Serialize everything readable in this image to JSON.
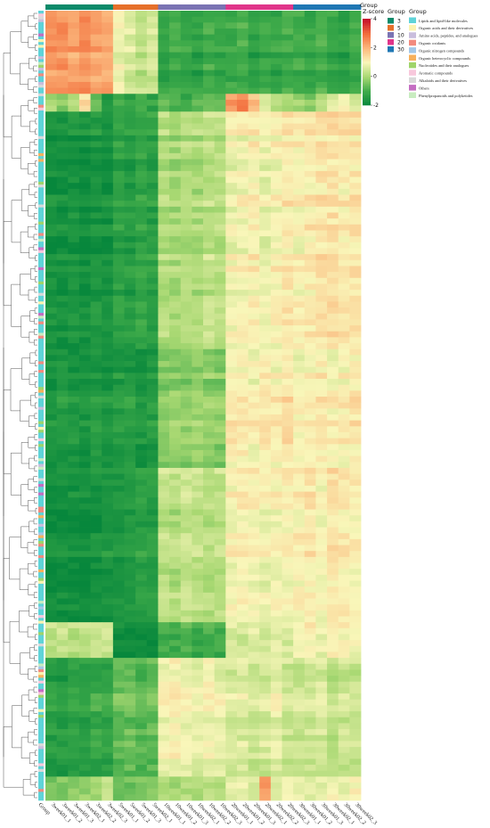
{
  "chart_data": {
    "type": "heatmap",
    "title": "",
    "top_annotation_label": "Group",
    "samples": [
      "3week01_1",
      "3week01_2",
      "3week01_3",
      "3week02_1",
      "3week02_2",
      "3week02_3",
      "5week01_1",
      "5week01_2",
      "5week01_3",
      "5week02_1",
      "10week01_1",
      "10week01_2",
      "10week01_3",
      "10week02_1",
      "10week02_2",
      "10week02_3",
      "20week01_1",
      "20week01_2",
      "20week01_3",
      "20week02_1",
      "20week02_2",
      "20week02_3",
      "30week01_1",
      "30week01_2",
      "30week01_3",
      "30week02_1",
      "30week02_2",
      "30week02_3"
    ],
    "sample_groups": [
      "3",
      "3",
      "3",
      "3",
      "3",
      "3",
      "5",
      "5",
      "5",
      "5",
      "10",
      "10",
      "10",
      "10",
      "10",
      "10",
      "20",
      "20",
      "20",
      "20",
      "20",
      "20",
      "30",
      "30",
      "30",
      "30",
      "30",
      "30"
    ],
    "bottom_first_label": "Group",
    "colorbar": {
      "title": "Z-score",
      "ticks": [
        4,
        2,
        0,
        -2
      ],
      "range": [
        -2,
        4
      ],
      "colors": [
        "#07873c",
        "#3fab4a",
        "#a8d872",
        "#f9f6b9",
        "#fbb77c",
        "#f26b3a",
        "#c4102b"
      ]
    },
    "legend_sample_group": {
      "title": "Group",
      "entries": [
        {
          "label": "3",
          "color": "#0d8a6a"
        },
        {
          "label": "5",
          "color": "#e6702a"
        },
        {
          "label": "10",
          "color": "#7a73b3"
        },
        {
          "label": "20",
          "color": "#e0358a"
        },
        {
          "label": "30",
          "color": "#1f77b4"
        }
      ]
    },
    "legend_class": {
      "title": "Group",
      "entries": [
        {
          "label": "Lipids and lipid-like molecules",
          "color": "#5fd3d8"
        },
        {
          "label": "Organic acids and their derivatives",
          "color": "#fbf3b0"
        },
        {
          "label": "Amino acids, peptides, and analogues",
          "color": "#c9bddd"
        },
        {
          "label": "Organic oxidants",
          "color": "#f28b7e"
        },
        {
          "label": "Organic nitrogen compounds",
          "color": "#a4c8e8"
        },
        {
          "label": "Organic heterocyclic compounds",
          "color": "#f7b15c"
        },
        {
          "label": "Nucleotides and their analogues",
          "color": "#9fd46a"
        },
        {
          "label": "Aromatic compounds",
          "color": "#f8c8dc"
        },
        {
          "label": "Alkaloids and their derivatives",
          "color": "#d9d9d9"
        },
        {
          "label": "Others",
          "color": "#c46dc2"
        },
        {
          "label": "Phenylpropanoids and polyketides",
          "color": "#c8ecc0"
        }
      ]
    },
    "row_clusters": [
      {
        "rows": 14,
        "values": [
          2.4,
          2.4,
          2.3,
          2.5,
          2.3,
          2.2,
          0.9,
          0.6,
          0.3,
          0.5,
          -1.2,
          -1.0,
          -1.1,
          -1.3,
          -1.0,
          -1.2,
          -1.1,
          -0.9,
          -1.3,
          -1.1,
          -1.2,
          -1.0,
          -1.0,
          -1.2,
          -0.9,
          -1.1,
          -1.3,
          -1.0
        ]
      },
      {
        "rows": 3,
        "values": [
          0.1,
          -0.2,
          0.4,
          1.6,
          -0.5,
          -1.4,
          -0.9,
          -1.0,
          -0.8,
          -1.2,
          -0.6,
          -0.7,
          -0.9,
          -0.8,
          -0.5,
          -0.7,
          2.5,
          2.8,
          1.9,
          0.7,
          0.4,
          0.2,
          0.0,
          -0.3,
          0.2,
          0.9,
          1.1,
          0.6
        ]
      },
      {
        "rows": 40,
        "values": [
          -1.7,
          -1.7,
          -1.6,
          -1.8,
          -1.6,
          -1.7,
          -1.3,
          -1.4,
          -1.2,
          -1.3,
          0.1,
          0.0,
          0.2,
          0.1,
          0.3,
          0.2,
          0.9,
          1.0,
          1.1,
          0.8,
          1.0,
          1.2,
          1.1,
          1.2,
          1.3,
          1.4,
          1.2,
          1.3
        ]
      },
      {
        "rows": 20,
        "values": [
          -1.6,
          -1.5,
          -1.6,
          -1.7,
          -1.5,
          -1.6,
          -1.5,
          -1.4,
          -1.6,
          -1.5,
          -0.3,
          -0.2,
          -0.3,
          -0.1,
          -0.2,
          -0.3,
          1.1,
          1.2,
          1.0,
          1.2,
          1.1,
          1.3,
          1.0,
          1.1,
          1.2,
          1.0,
          1.1,
          1.2
        ]
      },
      {
        "rows": 26,
        "values": [
          -1.8,
          -1.8,
          -1.7,
          -1.8,
          -1.7,
          -1.6,
          -1.6,
          -1.5,
          -1.3,
          -1.4,
          0.3,
          0.2,
          0.4,
          0.3,
          0.2,
          0.3,
          1.0,
          1.1,
          1.0,
          0.9,
          1.0,
          1.1,
          1.1,
          1.2,
          1.0,
          1.3,
          1.2,
          1.1
        ]
      },
      {
        "rows": 6,
        "values": [
          0.2,
          0.3,
          0.1,
          0.2,
          0.3,
          0.4,
          -1.9,
          -2.0,
          -1.8,
          -1.9,
          -1.0,
          -1.1,
          -0.9,
          -1.2,
          -1.0,
          -1.1,
          0.5,
          0.4,
          0.6,
          0.5,
          0.7,
          0.5,
          0.9,
          1.0,
          0.8,
          1.1,
          1.0,
          0.9
        ]
      },
      {
        "rows": 20,
        "values": [
          -1.3,
          -1.4,
          -1.2,
          -1.3,
          -1.1,
          -1.2,
          -0.6,
          -0.5,
          -0.7,
          -0.6,
          1.0,
          1.1,
          0.9,
          0.8,
          1.0,
          0.9,
          0.6,
          0.7,
          0.5,
          0.6,
          0.8,
          0.5,
          0.4,
          0.5,
          0.6,
          0.3,
          0.5,
          0.4
        ]
      },
      {
        "rows": 4,
        "values": [
          -0.6,
          -0.5,
          -0.4,
          -0.3,
          -0.2,
          0.1,
          -0.8,
          -0.7,
          -0.6,
          -0.5,
          -0.1,
          -0.2,
          0.0,
          -0.1,
          0.1,
          0.0,
          0.6,
          0.7,
          0.5,
          2.2,
          0.4,
          0.6,
          0.7,
          0.5,
          0.6,
          0.8,
          0.7,
          0.9
        ]
      }
    ]
  }
}
